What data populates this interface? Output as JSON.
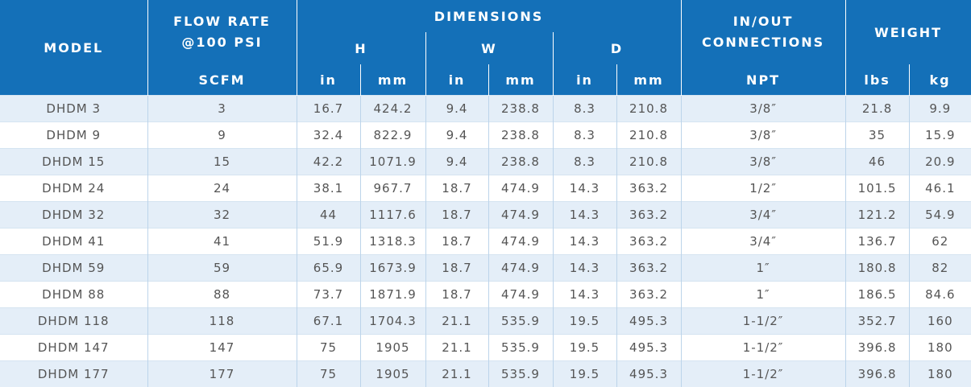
{
  "header": {
    "model": "MODEL",
    "flow_rate": "FLOW RATE @100 PSI",
    "flow_unit": "SCFM",
    "dimensions": "DIMENSIONS",
    "dims": [
      "H",
      "W",
      "D"
    ],
    "dim_units": [
      "in",
      "mm",
      "in",
      "mm",
      "in",
      "mm"
    ],
    "connections": "IN/OUT CONNECTIONS",
    "connections_unit": "NPT",
    "weight": "WEIGHT",
    "weight_units": [
      "lbs",
      "kg"
    ]
  },
  "table": {
    "rows": [
      [
        "DHDM 3",
        "3",
        "16.7",
        "424.2",
        "9.4",
        "238.8",
        "8.3",
        "210.8",
        "3/8″",
        "21.8",
        "9.9"
      ],
      [
        "DHDM 9",
        "9",
        "32.4",
        "822.9",
        "9.4",
        "238.8",
        "8.3",
        "210.8",
        "3/8″",
        "35",
        "15.9"
      ],
      [
        "DHDM 15",
        "15",
        "42.2",
        "1071.9",
        "9.4",
        "238.8",
        "8.3",
        "210.8",
        "3/8″",
        "46",
        "20.9"
      ],
      [
        "DHDM 24",
        "24",
        "38.1",
        "967.7",
        "18.7",
        "474.9",
        "14.3",
        "363.2",
        "1/2″",
        "101.5",
        "46.1"
      ],
      [
        "DHDM 32",
        "32",
        "44",
        "1117.6",
        "18.7",
        "474.9",
        "14.3",
        "363.2",
        "3/4″",
        "121.2",
        "54.9"
      ],
      [
        "DHDM 41",
        "41",
        "51.9",
        "1318.3",
        "18.7",
        "474.9",
        "14.3",
        "363.2",
        "3/4″",
        "136.7",
        "62"
      ],
      [
        "DHDM 59",
        "59",
        "65.9",
        "1673.9",
        "18.7",
        "474.9",
        "14.3",
        "363.2",
        "1″",
        "180.8",
        "82"
      ],
      [
        "DHDM 88",
        "88",
        "73.7",
        "1871.9",
        "18.7",
        "474.9",
        "14.3",
        "363.2",
        "1″",
        "186.5",
        "84.6"
      ],
      [
        "DHDM 118",
        "118",
        "67.1",
        "1704.3",
        "21.1",
        "535.9",
        "19.5",
        "495.3",
        "1-1/2″",
        "352.7",
        "160"
      ],
      [
        "DHDM 147",
        "147",
        "75",
        "1905",
        "21.1",
        "535.9",
        "19.5",
        "495.3",
        "1-1/2″",
        "396.8",
        "180"
      ],
      [
        "DHDM 177",
        "177",
        "75",
        "1905",
        "21.1",
        "535.9",
        "19.5",
        "495.3",
        "1-1/2″",
        "396.8",
        "180"
      ]
    ]
  }
}
